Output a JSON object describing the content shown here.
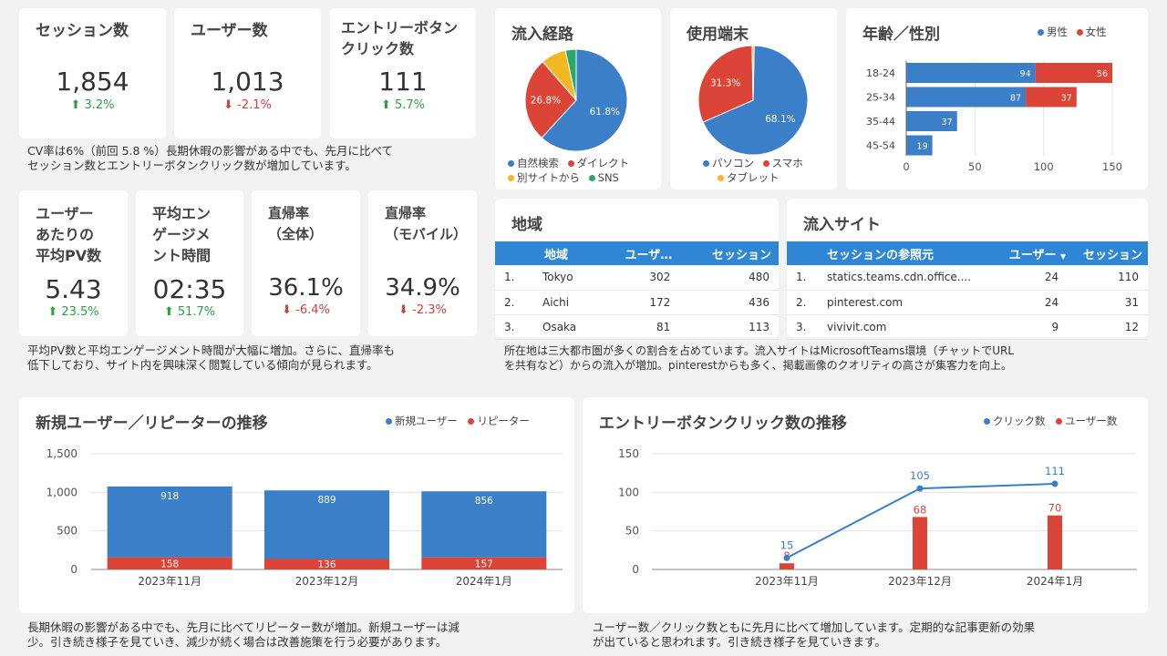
{
  "kpis_top": [
    {
      "title": "セッション数",
      "value": "1,854",
      "delta": "3.2%",
      "dir": "up"
    },
    {
      "title": "ユーザー数",
      "value": "1,013",
      "delta": "-2.1%",
      "dir": "down"
    },
    {
      "title": "エントリーボタン\nクリック数",
      "value": "111",
      "delta": "5.7%",
      "dir": "up"
    }
  ],
  "kpis_bottom": [
    {
      "title": "ユーザー\nあたりの\n平均PV数",
      "value": "5.43",
      "delta": "23.5%",
      "dir": "up"
    },
    {
      "title": "平均エン\nゲージメ\nント時間",
      "value": "02:35",
      "delta": "51.7%",
      "dir": "up"
    },
    {
      "title": "直帰率\n（全体）",
      "value": "36.1%",
      "delta": "-6.4%",
      "dir": "down"
    },
    {
      "title": "直帰率\n（モバイル）",
      "value": "34.9%",
      "delta": "-2.3%",
      "dir": "down"
    }
  ],
  "notes": {
    "kpi_top": "CV率は6%（前回 5.8 %）長期休暇の影響がある中でも、先月に比べて\nセッション数とエントリーボタンクリック数が増加しています。",
    "kpi_bottom": "平均PV数と平均エンゲージメント時間が大幅に増加。さらに、直帰率も\n低下しており、サイト内を興味深く閲覧している傾向が見られます。",
    "region": "所在地は三大都市圏が多くの割合を占めています。流入サイトはMicrosoftTeams環境（チャットでURL\nを共有など）からの流入が増加。pinterestからも多く、掲載画像のクオリティの高さが集客力を向上。",
    "users": "長期休暇の影響がある中でも、先月に比べてリピーター数が増加。新規ユーザーは減\n少。引き続き様子を見ていき、減少が続く場合は改善施策を行う必要があります。",
    "clicks": "ユーザー数／クリック数ともに先月に比べて増加しています。定期的な記事更新の効果\nが出ていると思われます。引き続き様子を見ていきます。"
  },
  "colors": {
    "blue": "#3b7fc8",
    "red": "#dc4437",
    "yellow": "#f2b824",
    "green": "#2aa86c",
    "header": "#2f86d4"
  },
  "traffic": {
    "title": "流入経路",
    "legend": [
      "自然検索",
      "ダイレクト",
      "別サイトから",
      "SNS"
    ],
    "chart_data": {
      "type": "pie",
      "labels": [
        "自然検索",
        "ダイレクト",
        "別サイトから",
        "SNS"
      ],
      "values": [
        61.8,
        26.8,
        8.0,
        3.4
      ],
      "value_labels": [
        "61.8%",
        "26.8%",
        "",
        ""
      ],
      "colors": [
        "#3b7fc8",
        "#dc4437",
        "#f2b824",
        "#2aa86c"
      ]
    }
  },
  "device": {
    "title": "使用端末",
    "legend": [
      "パソコン",
      "スマホ",
      "タブレット"
    ],
    "chart_data": {
      "type": "pie",
      "labels": [
        "パソコン",
        "スマホ",
        "タブレット"
      ],
      "values": [
        68.1,
        31.3,
        0.6
      ],
      "value_labels": [
        "68.1%",
        "31.3%",
        ""
      ],
      "colors": [
        "#3b7fc8",
        "#dc4437",
        "#f2b824"
      ]
    }
  },
  "age": {
    "title": "年齢／性別",
    "legend": [
      "男性",
      "女性"
    ],
    "chart_data": {
      "type": "bar",
      "orientation": "horizontal",
      "stacked": true,
      "categories": [
        "18-24",
        "25-34",
        "35-44",
        "45-54"
      ],
      "series": [
        {
          "name": "男性",
          "values": [
            94,
            87,
            37,
            19
          ]
        },
        {
          "name": "女性",
          "values": [
            56,
            37,
            0,
            0
          ]
        }
      ],
      "xlim": [
        0,
        150
      ],
      "xticks": [
        "0",
        "50",
        "100",
        "150"
      ]
    }
  },
  "region": {
    "title": "地域",
    "headers": [
      "地域",
      "ユーザ…",
      "セッション"
    ],
    "rows": [
      {
        "n": "1.",
        "name": "Tokyo",
        "users": "302",
        "sessions": "480"
      },
      {
        "n": "2.",
        "name": "Aichi",
        "users": "172",
        "sessions": "436"
      },
      {
        "n": "3.",
        "name": "Osaka",
        "users": "81",
        "sessions": "113"
      }
    ]
  },
  "sites": {
    "title": "流入サイト",
    "headers": [
      "セッションの参照元",
      "ユーザー",
      "セッション"
    ],
    "sort_icon": "▼",
    "rows": [
      {
        "n": "1.",
        "name": "statics.teams.cdn.office....",
        "users": "24",
        "sessions": "110"
      },
      {
        "n": "2.",
        "name": "pinterest.com",
        "users": "24",
        "sessions": "31"
      },
      {
        "n": "3.",
        "name": "vivivit.com",
        "users": "9",
        "sessions": "12"
      }
    ]
  },
  "users_trend": {
    "title": "新規ユーザー／リピーターの推移",
    "legend": [
      "新規ユーザー",
      "リピーター"
    ],
    "chart_data": {
      "type": "bar",
      "stacked": true,
      "categories": [
        "2023年11月",
        "2023年12月",
        "2024年1月"
      ],
      "series": [
        {
          "name": "新規ユーザー",
          "values": [
            918,
            889,
            856
          ]
        },
        {
          "name": "リピーター",
          "values": [
            158,
            136,
            157
          ]
        }
      ],
      "ylim": [
        0,
        1500
      ],
      "yticks": [
        "0",
        "500",
        "1,000",
        "1,500"
      ]
    }
  },
  "click_trend": {
    "title": "エントリーボタンクリック数の推移",
    "legend": [
      "クリック数",
      "ユーザー数"
    ],
    "chart_data": {
      "type": "bar",
      "categories": [
        "2023年11月",
        "2023年12月",
        "2024年1月"
      ],
      "series": [
        {
          "name": "クリック数",
          "type": "line",
          "values": [
            15,
            105,
            111
          ]
        },
        {
          "name": "ユーザー数",
          "type": "bar",
          "values": [
            8,
            68,
            70
          ]
        }
      ],
      "ylim": [
        0,
        150
      ],
      "yticks": [
        "0",
        "50",
        "100",
        "150"
      ]
    }
  }
}
